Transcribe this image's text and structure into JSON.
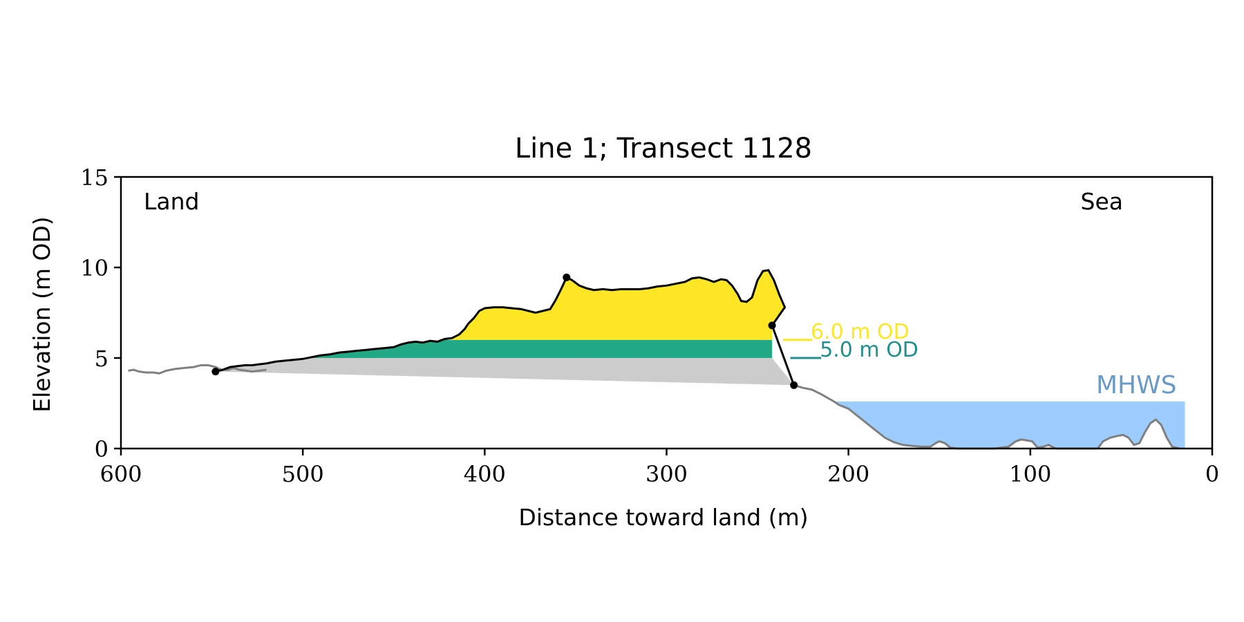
{
  "chart_data": {
    "type": "area",
    "title": "Line 1; Transect 1128",
    "xlabel": "Distance toward land (m)",
    "ylabel": "Elevation (m OD)",
    "xlim": [
      600,
      0
    ],
    "ylim": [
      0,
      15
    ],
    "x_ticks": [
      600,
      500,
      400,
      300,
      200,
      100,
      0
    ],
    "y_ticks": [
      0,
      5,
      10,
      15
    ],
    "grid": false,
    "annotations": {
      "left": "Land",
      "right": "Sea"
    },
    "colors": {
      "profile": "#808080",
      "dune_outline": "#000000",
      "above_6m": "#fde725",
      "band_5_6m": "#22a884",
      "below_5m": "#cccccc",
      "mhws": "#9ccdfe",
      "label_6m": "#fde725",
      "label_5m": "#218f8d",
      "label_mhws": "#6a9bc8"
    },
    "levels": [
      {
        "label": "6.0 m OD",
        "value": 6.0
      },
      {
        "label": "5.0 m OD",
        "value": 5.0
      }
    ],
    "mhws": {
      "label": "MHWS",
      "value": 2.6,
      "x_start": 208,
      "x_end": 15
    },
    "dune_base": {
      "landward": [
        548,
        4.25
      ],
      "seaward": [
        230,
        3.5
      ]
    },
    "key_points": [
      [
        548,
        4.25
      ],
      [
        355,
        9.45
      ],
      [
        242,
        6.8
      ],
      [
        230,
        3.5
      ]
    ],
    "profile": [
      [
        596,
        4.3
      ],
      [
        593,
        4.35
      ],
      [
        590,
        4.25
      ],
      [
        586,
        4.2
      ],
      [
        582,
        4.2
      ],
      [
        579,
        4.15
      ],
      [
        575,
        4.3
      ],
      [
        570,
        4.4
      ],
      [
        565,
        4.45
      ],
      [
        560,
        4.5
      ],
      [
        556,
        4.6
      ],
      [
        552,
        4.6
      ],
      [
        548,
        4.5
      ],
      [
        545,
        4.35
      ],
      [
        541,
        4.35
      ],
      [
        538,
        4.45
      ],
      [
        535,
        4.35
      ],
      [
        531,
        4.3
      ],
      [
        528,
        4.25
      ],
      [
        524,
        4.3
      ],
      [
        520,
        4.35
      ],
      [
        208,
        2.6
      ],
      [
        215,
        3.0
      ],
      [
        220,
        3.25
      ],
      [
        225,
        3.35
      ],
      [
        230,
        3.5
      ],
      [
        205,
        2.4
      ],
      [
        200,
        2.2
      ],
      [
        195,
        1.8
      ],
      [
        190,
        1.4
      ],
      [
        185,
        1.0
      ],
      [
        180,
        0.6
      ],
      [
        175,
        0.35
      ],
      [
        170,
        0.2
      ],
      [
        165,
        0.15
      ],
      [
        160,
        0.1
      ],
      [
        155,
        0.1
      ],
      [
        152,
        0.3
      ],
      [
        150,
        0.4
      ],
      [
        147,
        0.3
      ],
      [
        144,
        0.05
      ],
      [
        140,
        0.0
      ],
      [
        130,
        0.0
      ],
      [
        120,
        0.0
      ],
      [
        112,
        0.1
      ],
      [
        108,
        0.4
      ],
      [
        105,
        0.5
      ],
      [
        102,
        0.45
      ],
      [
        99,
        0.4
      ],
      [
        96,
        0.05
      ],
      [
        93,
        0.1
      ],
      [
        90,
        0.2
      ],
      [
        86,
        0.0
      ],
      [
        70,
        0.0
      ],
      [
        63,
        0.0
      ],
      [
        60,
        0.4
      ],
      [
        56,
        0.6
      ],
      [
        52,
        0.7
      ],
      [
        49,
        0.75
      ],
      [
        46,
        0.6
      ],
      [
        43,
        0.2
      ],
      [
        40,
        0.3
      ],
      [
        37,
        0.9
      ],
      [
        34,
        1.4
      ],
      [
        31,
        1.6
      ],
      [
        28,
        1.3
      ],
      [
        25,
        0.6
      ],
      [
        22,
        0.1
      ],
      [
        18,
        0.0
      ]
    ],
    "dune_profile": [
      [
        548,
        4.25
      ],
      [
        544,
        4.35
      ],
      [
        540,
        4.5
      ],
      [
        536,
        4.55
      ],
      [
        532,
        4.6
      ],
      [
        528,
        4.6
      ],
      [
        524,
        4.65
      ],
      [
        520,
        4.7
      ],
      [
        515,
        4.8
      ],
      [
        510,
        4.85
      ],
      [
        505,
        4.9
      ],
      [
        500,
        4.95
      ],
      [
        495,
        5.05
      ],
      [
        490,
        5.15
      ],
      [
        485,
        5.2
      ],
      [
        480,
        5.3
      ],
      [
        475,
        5.35
      ],
      [
        470,
        5.4
      ],
      [
        465,
        5.45
      ],
      [
        460,
        5.5
      ],
      [
        455,
        5.55
      ],
      [
        450,
        5.6
      ],
      [
        446,
        5.75
      ],
      [
        442,
        5.85
      ],
      [
        438,
        5.9
      ],
      [
        434,
        5.85
      ],
      [
        430,
        5.95
      ],
      [
        426,
        5.9
      ],
      [
        422,
        6.05
      ],
      [
        418,
        6.1
      ],
      [
        414,
        6.3
      ],
      [
        411,
        6.6
      ],
      [
        409,
        6.9
      ],
      [
        406,
        7.2
      ],
      [
        403,
        7.6
      ],
      [
        400,
        7.75
      ],
      [
        395,
        7.8
      ],
      [
        390,
        7.8
      ],
      [
        385,
        7.75
      ],
      [
        380,
        7.7
      ],
      [
        376,
        7.6
      ],
      [
        372,
        7.5
      ],
      [
        368,
        7.6
      ],
      [
        364,
        7.7
      ],
      [
        361,
        8.2
      ],
      [
        358,
        8.8
      ],
      [
        355,
        9.45
      ],
      [
        352,
        9.3
      ],
      [
        348,
        9.0
      ],
      [
        344,
        8.85
      ],
      [
        340,
        8.75
      ],
      [
        335,
        8.8
      ],
      [
        330,
        8.75
      ],
      [
        325,
        8.8
      ],
      [
        320,
        8.8
      ],
      [
        315,
        8.8
      ],
      [
        310,
        8.85
      ],
      [
        305,
        8.95
      ],
      [
        300,
        9.0
      ],
      [
        295,
        9.1
      ],
      [
        290,
        9.2
      ],
      [
        286,
        9.4
      ],
      [
        282,
        9.45
      ],
      [
        278,
        9.35
      ],
      [
        274,
        9.2
      ],
      [
        270,
        9.35
      ],
      [
        267,
        9.3
      ],
      [
        264,
        9.0
      ],
      [
        261,
        8.55
      ],
      [
        259,
        8.15
      ],
      [
        256,
        8.1
      ],
      [
        253,
        8.35
      ],
      [
        250,
        9.3
      ],
      [
        247,
        9.8
      ],
      [
        244,
        9.85
      ],
      [
        241,
        9.3
      ],
      [
        238,
        8.5
      ],
      [
        235,
        7.8
      ],
      [
        242,
        6.8
      ]
    ]
  }
}
